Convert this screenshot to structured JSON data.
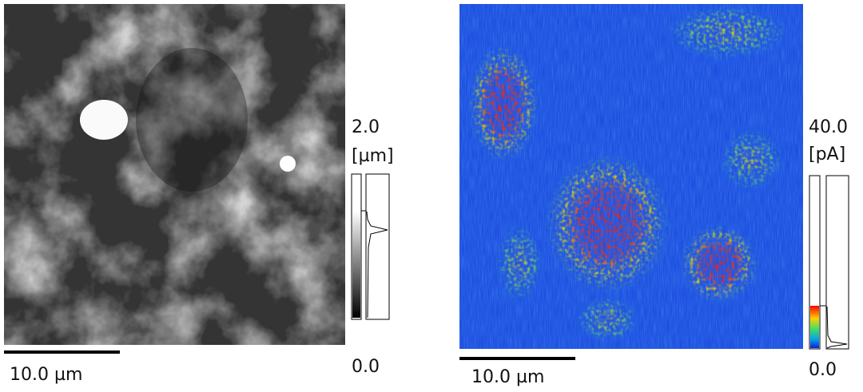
{
  "panels": [
    {
      "scale_label": "10.0 µm",
      "colorbar_max": "2.0",
      "colorbar_unit": "[µm]",
      "colorbar_min": "0.0"
    },
    {
      "scale_label": "10.0 µm",
      "colorbar_max": "40.0",
      "colorbar_unit": "[pA]",
      "colorbar_min": "0.0"
    }
  ]
}
